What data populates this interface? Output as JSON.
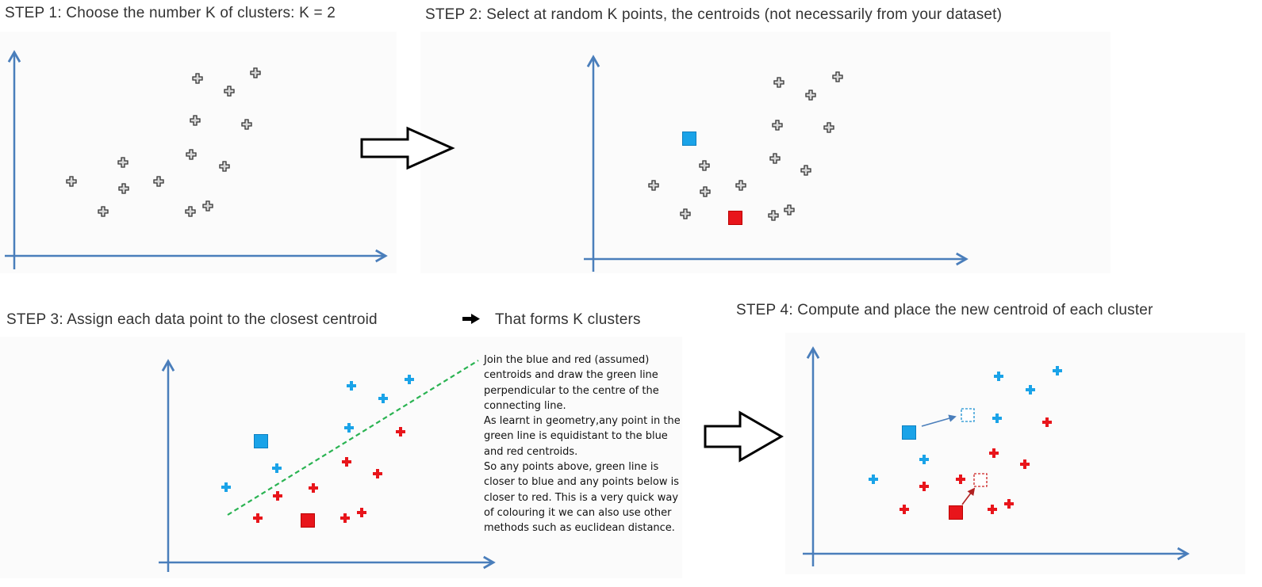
{
  "steps": [
    {
      "id": 1,
      "label": "STEP 1",
      "text": ": Choose the number K of clusters: K = 2"
    },
    {
      "id": 2,
      "label": "STEP 2",
      "text": ": Select at random K points, the centroids (not necessarily from your dataset)"
    },
    {
      "id": 3,
      "label": "STEP 3",
      "text": ": Assign each data point to the closest centroid",
      "after_arrow": "That forms K clusters"
    },
    {
      "id": 4,
      "label": "STEP 4",
      "text": ": Compute and place the new centroid of each cluster"
    }
  ],
  "note": {
    "paragraphs": [
      "Join the blue and red (assumed) centroids and draw the green line perpendicular to the centre of the connecting line.",
      "As learnt in geometry,any point in the green line is equidistant to the blue and red centroids.",
      "So any points above, green line is closer to blue and any points below  is closer to red. This is a very quick way of colouring it we can also use other methods such as euclidean distance."
    ]
  },
  "colors": {
    "axis": "#4a7ebb",
    "blue": "#1aa3e8",
    "red": "#e8151b",
    "gray_point": "#d9d9d9",
    "green_line": "#2ab352",
    "panel_bg": "#fbfbfb"
  },
  "icons": {
    "point": "plus-marker-icon",
    "centroid": "square-centroid-icon",
    "flow_arrow": "hollow-right-arrow-icon",
    "inline_arrow": "black-right-arrow-icon"
  }
}
